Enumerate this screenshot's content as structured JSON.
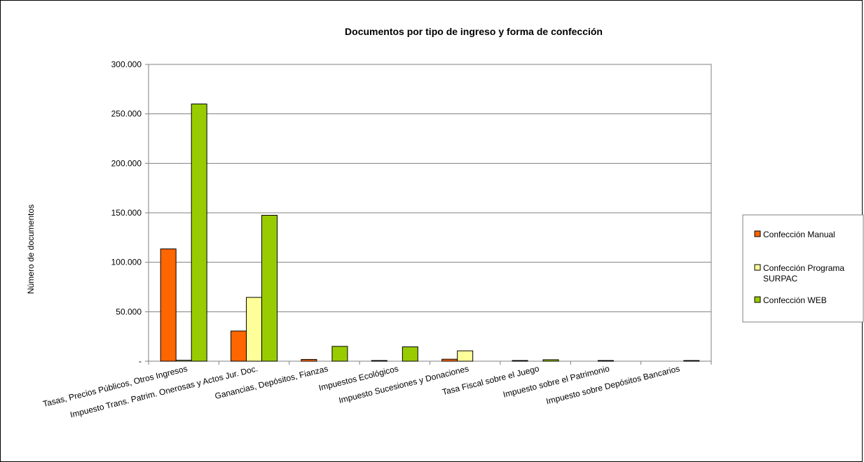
{
  "chart_data": {
    "type": "bar",
    "title": "Documentos por tipo de ingreso y forma de confección",
    "ylabel": "Número de documentos",
    "xlabel": "",
    "ylim": [
      0,
      300000
    ],
    "yticks": [
      0,
      50000,
      100000,
      150000,
      200000,
      250000,
      300000
    ],
    "ytick_labels": [
      "-",
      "50.000",
      "100.000",
      "150.000",
      "200.000",
      "250.000",
      "300.000"
    ],
    "grid": true,
    "legend_position": "right",
    "categories": [
      "Tasas, Precios Públicos, Otros Ingresos",
      "Impuesto Trans. Patrim. Onerosas y Actos Jur. Doc.",
      "Ganancias, Depósitos, Fianzas",
      "Impuestos Ecológicos",
      "Impuesto Sucesiones y Donaciones",
      "Tasa Fiscal sobre el Juego",
      "Impuesto sobre el Patrimonio",
      "Impuesto sobre Depósitos Bancarios"
    ],
    "series": [
      {
        "name": "Confección Manual",
        "color": "#ff6600",
        "values": [
          113500,
          30500,
          1800,
          300,
          2000,
          200,
          0,
          0
        ]
      },
      {
        "name": "Confección Programa SURPAC",
        "color": "#ffff99",
        "values": [
          1000,
          64500,
          0,
          0,
          10500,
          0,
          600,
          0
        ]
      },
      {
        "name": "Confección WEB",
        "color": "#99cc00",
        "values": [
          260000,
          147500,
          15000,
          14500,
          0,
          1500,
          0,
          400
        ]
      }
    ]
  }
}
